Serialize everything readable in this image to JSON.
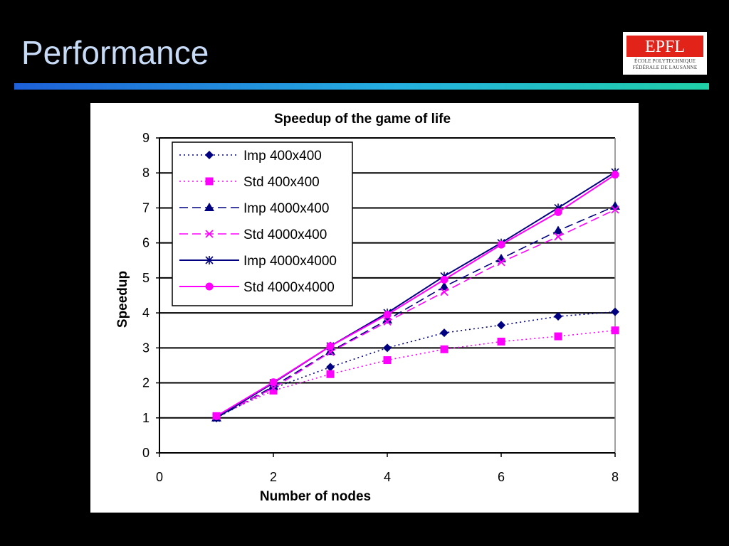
{
  "slide": {
    "title": "Performance"
  },
  "logo": {
    "mark_text": "EPFL",
    "line1": "ÉCOLE POLYTECHNIQUE",
    "line2": "FÉDÉRALE DE LAUSANNE",
    "color": "#e2231a"
  },
  "chart_data": {
    "type": "line",
    "title": "Speedup of the game of life",
    "xlabel": "Number of nodes",
    "ylabel": "Speedup",
    "xlim": [
      0,
      8
    ],
    "ylim": [
      0,
      9
    ],
    "xticks": [
      "0",
      "2",
      "4",
      "6",
      "8"
    ],
    "yticks": [
      "0",
      "1",
      "2",
      "3",
      "4",
      "5",
      "6",
      "7",
      "8",
      "9"
    ],
    "grid": "horizontal",
    "legend_position": "top-left",
    "x": [
      1,
      2,
      3,
      4,
      5,
      6,
      7,
      8
    ],
    "series": [
      {
        "name": "Imp 400x400",
        "color": "#000080",
        "dash": "dotted",
        "marker": "diamond",
        "values": [
          1.0,
          1.85,
          2.45,
          3.0,
          3.43,
          3.65,
          3.9,
          4.03
        ]
      },
      {
        "name": "Std 400x400",
        "color": "#ff00ff",
        "dash": "dotted",
        "marker": "square",
        "values": [
          1.05,
          1.78,
          2.25,
          2.65,
          2.96,
          3.18,
          3.33,
          3.5
        ]
      },
      {
        "name": "Imp 4000x400",
        "color": "#000080",
        "dash": "dashed",
        "marker": "triangle",
        "values": [
          1.0,
          1.9,
          2.9,
          3.8,
          4.75,
          5.55,
          6.35,
          7.05
        ]
      },
      {
        "name": "Std 4000x400",
        "color": "#ff00ff",
        "dash": "dashed",
        "marker": "x",
        "values": [
          1.05,
          1.85,
          2.88,
          3.75,
          4.6,
          5.45,
          6.18,
          6.95
        ]
      },
      {
        "name": "Imp 4000x4000",
        "color": "#000080",
        "dash": "solid",
        "marker": "asterisk",
        "values": [
          1.0,
          2.0,
          3.05,
          4.0,
          5.05,
          6.0,
          7.0,
          8.02
        ]
      },
      {
        "name": "Std 4000x4000",
        "color": "#ff00ff",
        "dash": "solid",
        "marker": "circle",
        "values": [
          1.05,
          2.02,
          3.05,
          3.95,
          4.95,
          5.95,
          6.88,
          7.95
        ]
      }
    ]
  }
}
